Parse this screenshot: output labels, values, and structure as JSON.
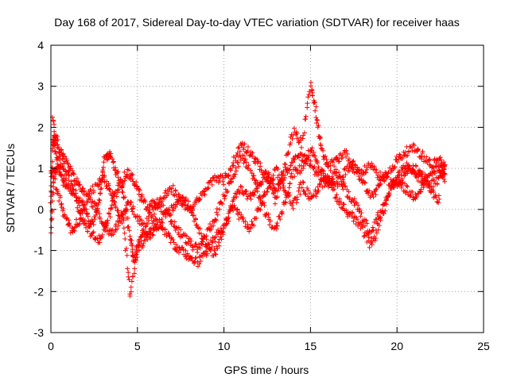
{
  "chart_data": {
    "type": "scatter",
    "title": "Day 168 of 2017, Sidereal Day-to-day VTEC variation (SDTVAR) for receiver haas",
    "xlabel": "GPS time / hours",
    "ylabel": "SDTVAR / TECUs",
    "xlim": [
      0,
      25
    ],
    "ylim": [
      -3,
      4
    ],
    "xticks": [
      "0",
      "5",
      "10",
      "15",
      "20",
      "25"
    ],
    "yticks": [
      "-3",
      "-2",
      "-1",
      "0",
      "1",
      "2",
      "3",
      "4"
    ],
    "grid": true,
    "marker": "plus",
    "series": [
      {
        "name": "SDTVAR",
        "color": "#ff0000",
        "tracks": [
          [
            [
              0.0,
              0.2
            ],
            [
              0.1,
              1.6
            ],
            [
              0.3,
              1.8
            ],
            [
              0.5,
              1.4
            ],
            [
              0.8,
              1.2
            ],
            [
              1.2,
              0.9
            ],
            [
              1.6,
              0.6
            ],
            [
              2.0,
              0.4
            ],
            [
              2.5,
              0.1
            ],
            [
              3.0,
              -0.3
            ],
            [
              3.5,
              -0.6
            ],
            [
              4.0,
              -0.3
            ],
            [
              4.5,
              0.2
            ],
            [
              5.0,
              -0.2
            ],
            [
              5.5,
              -0.6
            ],
            [
              6.0,
              -0.3
            ],
            [
              6.5,
              -0.5
            ],
            [
              7.0,
              -0.8
            ],
            [
              7.5,
              -1.0
            ],
            [
              8.0,
              -1.2
            ],
            [
              8.5,
              -1.3
            ],
            [
              9.0,
              -1.0
            ],
            [
              9.5,
              -0.7
            ],
            [
              10.0,
              -0.4
            ],
            [
              10.5,
              0.2
            ],
            [
              11.0,
              0.5
            ],
            [
              11.5,
              0.3
            ],
            [
              12.0,
              0.6
            ],
            [
              12.5,
              0.9
            ],
            [
              13.0,
              0.5
            ],
            [
              13.5,
              0.8
            ],
            [
              14.0,
              1.2
            ],
            [
              14.5,
              1.3
            ],
            [
              15.0,
              1.1
            ],
            [
              15.5,
              0.8
            ],
            [
              16.0,
              0.6
            ],
            [
              16.5,
              0.9
            ],
            [
              17.0,
              0.5
            ],
            [
              17.5,
              0.2
            ],
            [
              18.0,
              -0.2
            ],
            [
              18.5,
              -0.6
            ],
            [
              19.0,
              -0.1
            ],
            [
              19.5,
              0.4
            ],
            [
              20.0,
              0.8
            ],
            [
              20.5,
              1.1
            ],
            [
              21.0,
              0.9
            ],
            [
              21.5,
              0.7
            ],
            [
              22.0,
              0.4
            ],
            [
              22.5,
              0.2
            ]
          ],
          [
            [
              0.0,
              -0.6
            ],
            [
              0.2,
              0.9
            ],
            [
              0.4,
              1.1
            ],
            [
              0.7,
              0.7
            ],
            [
              1.0,
              0.5
            ],
            [
              1.4,
              0.3
            ],
            [
              1.8,
              -0.2
            ],
            [
              2.2,
              -0.5
            ],
            [
              2.7,
              -0.8
            ],
            [
              3.2,
              -0.4
            ],
            [
              3.6,
              0.2
            ],
            [
              4.0,
              0.6
            ],
            [
              4.4,
              0.9
            ],
            [
              4.8,
              0.7
            ],
            [
              5.2,
              0.3
            ],
            [
              5.6,
              0.0
            ],
            [
              6.0,
              0.2
            ],
            [
              6.5,
              0.0
            ],
            [
              7.0,
              -0.3
            ],
            [
              7.5,
              -0.6
            ],
            [
              8.0,
              -0.8
            ],
            [
              8.5,
              -1.0
            ],
            [
              9.0,
              -0.6
            ],
            [
              9.5,
              -0.2
            ],
            [
              10.0,
              0.3
            ],
            [
              10.5,
              0.8
            ],
            [
              11.0,
              1.3
            ],
            [
              11.5,
              1.0
            ],
            [
              12.0,
              0.4
            ],
            [
              12.5,
              -0.2
            ],
            [
              13.0,
              -0.5
            ],
            [
              13.5,
              0.2
            ],
            [
              14.0,
              0.9
            ],
            [
              14.5,
              1.0
            ],
            [
              15.0,
              1.5
            ],
            [
              15.5,
              1.0
            ],
            [
              16.0,
              0.7
            ],
            [
              16.5,
              0.6
            ],
            [
              17.0,
              0.9
            ],
            [
              17.5,
              1.1
            ],
            [
              18.0,
              0.7
            ],
            [
              18.5,
              0.3
            ],
            [
              19.0,
              0.6
            ],
            [
              19.5,
              0.9
            ],
            [
              20.0,
              1.2
            ],
            [
              20.5,
              1.4
            ],
            [
              21.0,
              1.5
            ],
            [
              21.5,
              1.3
            ],
            [
              22.0,
              1.1
            ],
            [
              22.5,
              1.2
            ],
            [
              22.8,
              0.9
            ]
          ],
          [
            [
              0.1,
              2.2
            ],
            [
              0.3,
              1.3
            ],
            [
              0.6,
              1.0
            ],
            [
              1.0,
              0.8
            ],
            [
              1.5,
              0.4
            ],
            [
              2.0,
              0.0
            ],
            [
              2.4,
              -0.4
            ],
            [
              2.8,
              0.3
            ],
            [
              3.1,
              1.2
            ],
            [
              3.4,
              1.4
            ],
            [
              3.8,
              0.9
            ],
            [
              4.2,
              0.4
            ],
            [
              4.6,
              -0.7
            ],
            [
              4.8,
              -1.2
            ],
            [
              5.1,
              -0.8
            ],
            [
              5.5,
              -0.3
            ],
            [
              6.0,
              0.0
            ],
            [
              6.5,
              0.3
            ],
            [
              7.0,
              0.5
            ],
            [
              7.5,
              0.2
            ],
            [
              8.0,
              0.0
            ],
            [
              8.5,
              0.2
            ],
            [
              9.0,
              0.5
            ],
            [
              9.5,
              0.8
            ],
            [
              10.0,
              0.7
            ],
            [
              10.5,
              1.1
            ],
            [
              11.0,
              1.6
            ],
            [
              11.5,
              1.4
            ],
            [
              12.0,
              1.1
            ],
            [
              12.5,
              0.7
            ],
            [
              13.0,
              0.2
            ],
            [
              13.5,
              1.0
            ],
            [
              14.0,
              1.9
            ],
            [
              14.5,
              1.6
            ],
            [
              15.0,
              3.1
            ],
            [
              15.3,
              2.4
            ],
            [
              15.6,
              1.5
            ],
            [
              16.0,
              1.0
            ],
            [
              16.5,
              1.2
            ],
            [
              17.0,
              1.4
            ],
            [
              17.5,
              1.0
            ],
            [
              18.0,
              0.9
            ],
            [
              18.5,
              1.1
            ],
            [
              19.0,
              0.8
            ],
            [
              19.5,
              0.7
            ],
            [
              20.0,
              0.6
            ],
            [
              20.5,
              0.9
            ],
            [
              21.0,
              1.0
            ],
            [
              21.5,
              0.8
            ],
            [
              22.0,
              0.6
            ],
            [
              22.5,
              0.8
            ],
            [
              22.8,
              1.2
            ]
          ],
          [
            [
              0.0,
              1.0
            ],
            [
              0.4,
              0.4
            ],
            [
              0.8,
              -0.2
            ],
            [
              1.2,
              -0.5
            ],
            [
              1.6,
              -0.3
            ],
            [
              2.0,
              0.2
            ],
            [
              2.6,
              0.6
            ],
            [
              3.0,
              0.8
            ],
            [
              3.4,
              0.5
            ],
            [
              3.8,
              0.0
            ],
            [
              4.2,
              -0.3
            ],
            [
              4.6,
              -2.1
            ],
            [
              5.0,
              -1.0
            ],
            [
              5.5,
              -0.7
            ],
            [
              6.0,
              -0.5
            ],
            [
              6.5,
              -0.2
            ],
            [
              7.0,
              0.0
            ],
            [
              7.5,
              0.3
            ],
            [
              8.0,
              0.1
            ],
            [
              8.5,
              -0.4
            ],
            [
              9.0,
              -0.9
            ],
            [
              9.5,
              -1.1
            ],
            [
              10.0,
              -0.5
            ],
            [
              10.5,
              0.1
            ],
            [
              11.0,
              -0.2
            ],
            [
              11.5,
              -0.5
            ],
            [
              12.0,
              0.0
            ],
            [
              12.5,
              0.5
            ],
            [
              13.0,
              1.0
            ],
            [
              13.5,
              0.5
            ],
            [
              14.0,
              0.1
            ],
            [
              14.5,
              0.6
            ],
            [
              15.0,
              0.3
            ],
            [
              15.5,
              0.5
            ],
            [
              16.0,
              0.8
            ],
            [
              16.5,
              0.3
            ],
            [
              17.0,
              0.0
            ],
            [
              17.5,
              -0.2
            ],
            [
              18.0,
              -0.5
            ],
            [
              18.5,
              -0.9
            ],
            [
              19.0,
              -0.3
            ],
            [
              19.5,
              0.3
            ],
            [
              20.0,
              0.7
            ],
            [
              20.5,
              0.5
            ],
            [
              21.0,
              0.3
            ],
            [
              21.5,
              0.6
            ],
            [
              22.0,
              0.9
            ],
            [
              22.5,
              1.0
            ],
            [
              22.8,
              0.7
            ]
          ]
        ]
      }
    ]
  }
}
